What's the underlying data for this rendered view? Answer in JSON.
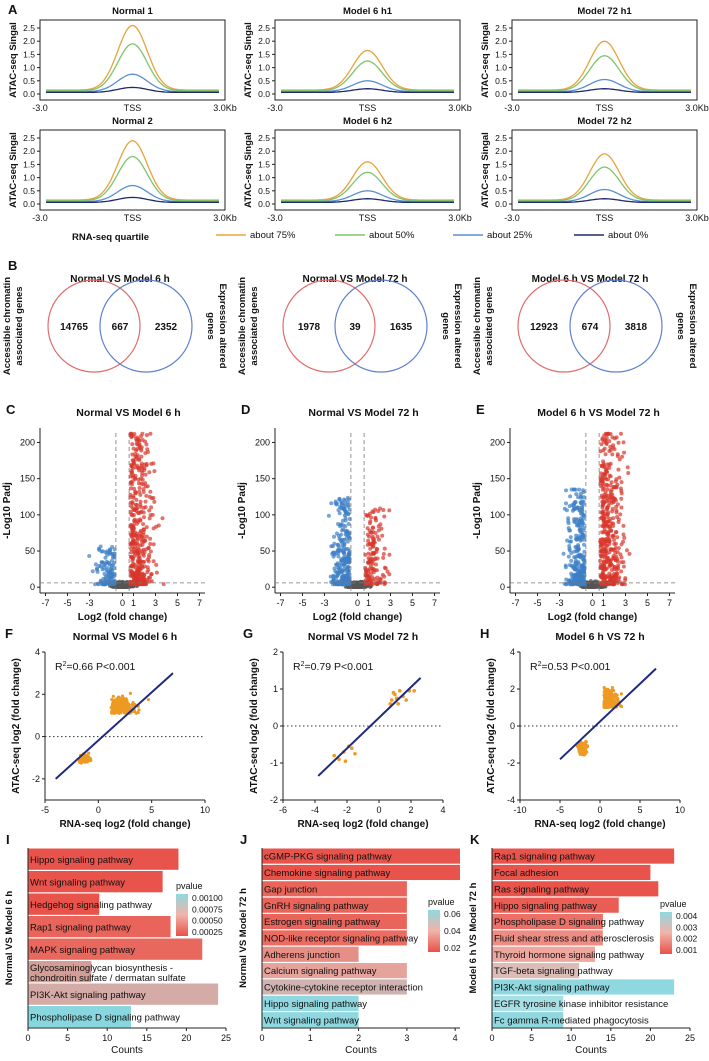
{
  "colors": {
    "orange": "#e8a33c",
    "green": "#7dc56d",
    "blue": "#5b8fd1",
    "navy": "#1f2a6b",
    "red_circle": "#e06b6b",
    "blue_circle": "#5f7fd0",
    "volcano_blue": "#3d7fc6",
    "volcano_red": "#d9362b",
    "volcano_grey": "#555555",
    "scatter": "#ee9a22",
    "regression": "#1f2a80",
    "bar_high": "#e8514a",
    "bar_mid": "#f2b3a7",
    "bar_low": "#8fd8e0"
  },
  "panel_a": {
    "label": "A",
    "ylabel": "ATAC-seq Singal",
    "ymax": 2.5,
    "yticks": [
      "0.0",
      "0.5",
      "1.0",
      "1.5",
      "2.0",
      "2.5"
    ],
    "xticks": [
      "-3.0",
      "TSS",
      "3.0Kb"
    ],
    "rna_label": "RNA-seq quartile",
    "legend": [
      {
        "label": "about 75%",
        "color": "orange"
      },
      {
        "label": "about 50%",
        "color": "green"
      },
      {
        "label": "about 25%",
        "color": "blue"
      },
      {
        "label": "about 0%",
        "color": "navy"
      }
    ],
    "plots": [
      {
        "title": "Normal 1",
        "peaks": [
          2.6,
          1.9,
          0.75,
          0.25
        ]
      },
      {
        "title": "Model 6 h1",
        "peaks": [
          1.65,
          1.25,
          0.5,
          0.2
        ]
      },
      {
        "title": "Model 72 h1",
        "peaks": [
          2.0,
          1.45,
          0.55,
          0.2
        ]
      },
      {
        "title": "Normal 2",
        "peaks": [
          2.4,
          1.8,
          0.7,
          0.25
        ]
      },
      {
        "title": "Model 6 h2",
        "peaks": [
          1.6,
          1.2,
          0.5,
          0.2
        ]
      },
      {
        "title": "Model 72 h2",
        "peaks": [
          1.9,
          1.4,
          0.55,
          0.2
        ]
      }
    ]
  },
  "panel_b": {
    "label": "B",
    "left_label_1": "Accessible chromatin",
    "left_label_2": "associated genes",
    "right_label_1": "Expression altered",
    "right_label_2": "genes",
    "venns": [
      {
        "title": "Normal VS Model 6 h",
        "left": "14765",
        "overlap": "667",
        "right": "2352"
      },
      {
        "title": "Normal VS Model 72 h",
        "left": "1978",
        "overlap": "39",
        "right": "1635"
      },
      {
        "title": "Model 6 h VS Model 72 h",
        "left": "12923",
        "overlap": "674",
        "right": "3818"
      }
    ]
  },
  "panel_cde": {
    "ylabel": "-Log10 Padj",
    "xlabel": "Log2 (fold change)",
    "xticks": [
      "-7",
      "-5",
      "-3",
      "0",
      "1",
      "3",
      "5",
      "7"
    ],
    "yticks": [
      "0",
      "50",
      "100",
      "150",
      "200"
    ],
    "plots": [
      {
        "label": "C",
        "title": "Normal VS Model 6 h"
      },
      {
        "label": "D",
        "title": "Normal VS Model 72 h"
      },
      {
        "label": "E",
        "title": "Model 6 h VS Model 72 h"
      }
    ]
  },
  "panel_fgh": {
    "ylabel": "ATAC-seq log2 (fold change)",
    "xlabel": "RNA-seq log2 (fold change)",
    "plots": [
      {
        "label": "F",
        "title": "Normal VS Model 6 h",
        "r2": "0.66",
        "p": "P<0.001",
        "xlim": [
          -5,
          10
        ],
        "ylim": [
          -3,
          4
        ],
        "xticks": [
          "-5",
          "0",
          "5",
          "10"
        ],
        "yticks": [
          "-2",
          "0",
          "2",
          "4"
        ],
        "line": [
          -4,
          -2.0,
          7,
          3.0
        ]
      },
      {
        "label": "G",
        "title": "Normal VS Model 72 h",
        "r2": "0.79",
        "p": "P<0.001",
        "xlim": [
          -6,
          4
        ],
        "ylim": [
          -2,
          2
        ],
        "xticks": [
          "-6",
          "-4",
          "-2",
          "0",
          "2",
          "4"
        ],
        "yticks": [
          "-2",
          "-1",
          "0",
          "1",
          "2"
        ],
        "line": [
          -3.8,
          -1.35,
          2.6,
          1.3
        ]
      },
      {
        "label": "H",
        "title": "Model 6 h VS 72 h",
        "r2": "0.53",
        "p": "P<0.001",
        "xlim": [
          -10,
          10
        ],
        "ylim": [
          -4,
          4
        ],
        "xticks": [
          "-10",
          "-5",
          "0",
          "5",
          "10"
        ],
        "yticks": [
          "-4",
          "-2",
          "0",
          "2",
          "4"
        ],
        "line": [
          -5,
          -1.8,
          7,
          3.1
        ]
      }
    ]
  },
  "panel_ijk": {
    "xlabel": "Counts",
    "legend_title": "pvalue",
    "charts": [
      {
        "label": "I",
        "side_label": "Normal VS Model 6 h",
        "xlim": [
          0,
          25
        ],
        "xticks": [
          "0",
          "5",
          "10",
          "15",
          "20",
          "25"
        ],
        "legend_ticks": [
          "0.00100",
          "0.00075",
          "0.00050",
          "0.00025"
        ],
        "bars": [
          {
            "name": "Hippo signaling pathway",
            "value": 19,
            "color": "#e8534b"
          },
          {
            "name": "Wnt signaling pathway",
            "value": 17,
            "color": "#e8534b"
          },
          {
            "name": "Hedgehog signaling pathway",
            "value": 9,
            "color": "#e8534b"
          },
          {
            "name": "Rap1 signaling pathway",
            "value": 18,
            "color": "#e9645a"
          },
          {
            "name": "MAPK signaling pathway",
            "value": 22,
            "color": "#e9685e"
          },
          {
            "name": "Glycosaminoglycan biosynthesis -",
            "name2": "chondroitin sulfate / dermatan sulfate",
            "value": 8,
            "color": "#d39e97"
          },
          {
            "name": "PI3K-Akt signaling pathway",
            "value": 24,
            "color": "#d4aba6"
          },
          {
            "name": "Phospholipase D signaling pathway",
            "value": 13,
            "color": "#88d6de"
          }
        ]
      },
      {
        "label": "J",
        "side_label": "Normal VS Model 72 h",
        "xlim": [
          0,
          4.1
        ],
        "xticks": [
          "0",
          "1",
          "2",
          "3",
          "4"
        ],
        "legend_ticks": [
          "0.06",
          "0.04",
          "0.02"
        ],
        "bars": [
          {
            "name": "cGMP-PKG signaling pathway",
            "value": 4.1,
            "color": "#e8534b"
          },
          {
            "name": "Chemokine signaling pathway",
            "value": 4.1,
            "color": "#e8534b"
          },
          {
            "name": "Gap junction",
            "value": 3.0,
            "color": "#e9645a"
          },
          {
            "name": "GnRH signaling pathway",
            "value": 3.0,
            "color": "#e9645a"
          },
          {
            "name": "Estrogen signaling pathway",
            "value": 3.0,
            "color": "#e9645a"
          },
          {
            "name": "NOD-like receptor signaling pathway",
            "value": 3.0,
            "color": "#ea6c62"
          },
          {
            "name": "Adherens junction",
            "value": 2.0,
            "color": "#e58f86"
          },
          {
            "name": "Calcium signaling pathway",
            "value": 3.0,
            "color": "#e5a39c"
          },
          {
            "name": "Cytokine-cytokine receptor interaction",
            "value": 3.0,
            "color": "#cfb3b0"
          },
          {
            "name": "Hippo signaling pathway",
            "value": 2.0,
            "color": "#8fd8e0"
          },
          {
            "name": "Wnt signaling pathway",
            "value": 2.0,
            "color": "#8fd8e0"
          }
        ]
      },
      {
        "label": "K",
        "side_label": "Model 6 h VS Model 72 h",
        "xlim": [
          0,
          25
        ],
        "xticks": [
          "0",
          "5",
          "10",
          "15",
          "20",
          "25"
        ],
        "legend_ticks": [
          "0.004",
          "0.003",
          "0.002",
          "0.001"
        ],
        "bars": [
          {
            "name": "Rap1 signaling pathway",
            "value": 23,
            "color": "#e8534b"
          },
          {
            "name": "Focal adhesion",
            "value": 20,
            "color": "#e8534b"
          },
          {
            "name": "Ras signaling pathway",
            "value": 21,
            "color": "#e8534b"
          },
          {
            "name": "Hippo signaling pathway",
            "value": 16,
            "color": "#e95d54"
          },
          {
            "name": "Phospholipase D signaling pathway",
            "value": 14,
            "color": "#ea7068"
          },
          {
            "name": "Fluid shear stress and atherosclerosis",
            "value": 14,
            "color": "#ec8d84"
          },
          {
            "name": "Thyroid hormone signaling pathway",
            "value": 13,
            "color": "#eda79f"
          },
          {
            "name": "TGF-beta signaling pathway",
            "value": 11,
            "color": "#dcbcb7"
          },
          {
            "name": "PI3K-Akt signaling pathway",
            "value": 23,
            "color": "#8fd8e0"
          },
          {
            "name": "EGFR tyrosine kinase inhibitor resistance",
            "value": 9,
            "color": "#a6e0e6"
          },
          {
            "name": "Fc gamma R-mediated phagocytosis",
            "value": 9,
            "color": "#8fd8e0"
          }
        ]
      }
    ]
  }
}
